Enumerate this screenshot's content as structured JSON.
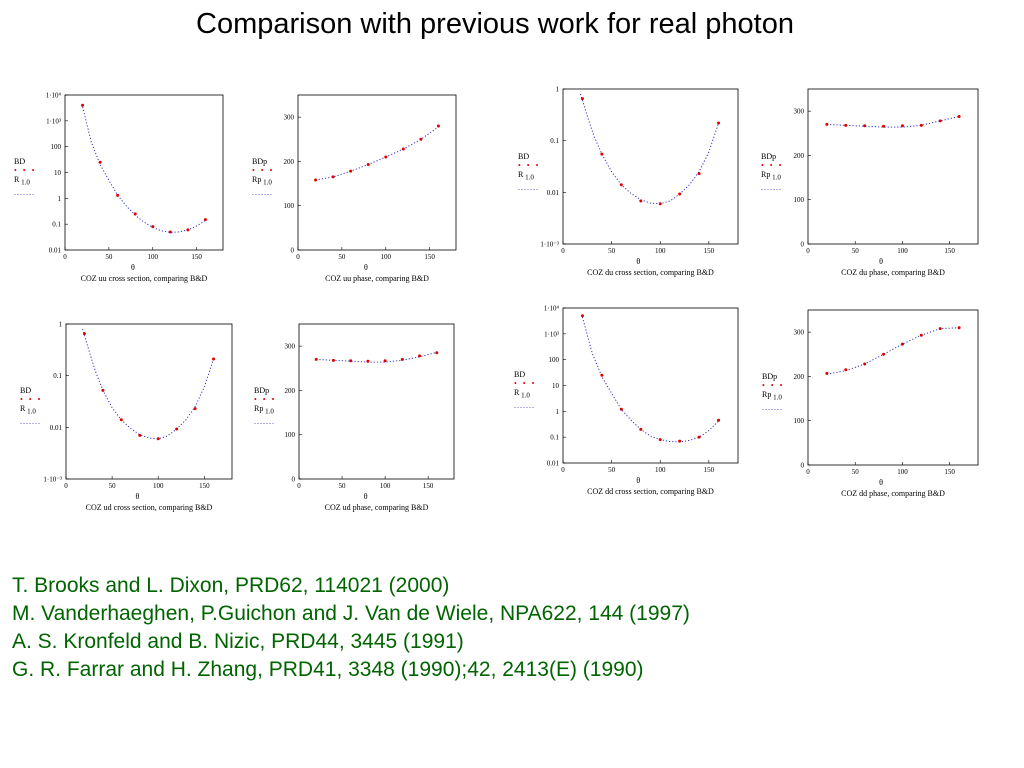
{
  "title": "Comparison with previous work for real photon",
  "references": [
    "T. Brooks and L. Dixon, PRD62, 114021 (2000)",
    "M. Vanderhaeghen, P.Guichon and J. Van de Wiele, NPA622, 144 (1997)",
    "A. S. Kronfeld and B. Nizic, PRD44, 3445 (1991)",
    "G. R. Farrar and H. Zhang, PRD41, 3348 (1990);42, 2413(E) (1990)"
  ],
  "colors": {
    "points": "#e00000",
    "curve": "#3333cc",
    "references": "#006400"
  },
  "chart_data": [
    {
      "type": "scatter",
      "yscale": "log",
      "xlabel": "θ",
      "caption": "COZ uu cross section, comparing B&D",
      "xlim": [
        0,
        180
      ],
      "xticks": [
        "0",
        "50",
        "100",
        "150"
      ],
      "ylim": [
        0.01,
        10000
      ],
      "yticks": [
        "0.01",
        "0.1",
        "1",
        "10",
        "100",
        "1·10³",
        "1·10⁴"
      ],
      "legend": {
        "points_label": "BD",
        "curve_label": "R",
        "curve_sub": "1.0"
      },
      "series": [
        {
          "name": "BD",
          "x": [
            20,
            40,
            60,
            80,
            100,
            120,
            140,
            160
          ],
          "y": [
            4000,
            25,
            1.3,
            0.25,
            0.08,
            0.05,
            0.06,
            0.15
          ]
        },
        {
          "name": "R",
          "style": "dotted",
          "x": [
            20,
            30,
            40,
            50,
            60,
            70,
            80,
            90,
            100,
            110,
            120,
            130,
            140,
            150,
            160
          ],
          "y": [
            3500,
            150,
            20,
            5,
            1.3,
            0.5,
            0.22,
            0.12,
            0.075,
            0.055,
            0.048,
            0.05,
            0.06,
            0.085,
            0.14
          ]
        }
      ]
    },
    {
      "type": "scatter",
      "yscale": "linear",
      "xlabel": "θ",
      "caption": "COZ uu phase, comparing B&D",
      "xlim": [
        0,
        180
      ],
      "xticks": [
        "0",
        "50",
        "100",
        "150"
      ],
      "ylim": [
        0,
        350
      ],
      "yticks": [
        "0",
        "100",
        "200",
        "300"
      ],
      "legend": {
        "points_label": "BDp",
        "curve_label": "Rp",
        "curve_sub": "1.0"
      },
      "series": [
        {
          "name": "BDp",
          "x": [
            20,
            40,
            60,
            80,
            100,
            120,
            140,
            160
          ],
          "y": [
            158,
            165,
            178,
            193,
            210,
            228,
            250,
            280
          ]
        },
        {
          "name": "Rp",
          "style": "dotted",
          "x": [
            20,
            40,
            60,
            80,
            100,
            120,
            140,
            160
          ],
          "y": [
            158,
            165,
            178,
            193,
            210,
            228,
            250,
            278
          ]
        }
      ]
    },
    {
      "type": "scatter",
      "yscale": "log",
      "xlabel": "θ",
      "caption": "COZ du cross section, comparing B&D",
      "xlim": [
        0,
        180
      ],
      "xticks": [
        "0",
        "50",
        "100",
        "150"
      ],
      "ylim": [
        0.001,
        1
      ],
      "yticks": [
        "1·10⁻³",
        "0.01",
        "0.1",
        "1"
      ],
      "legend": {
        "points_label": "BD",
        "curve_label": "R",
        "curve_sub": "1.0"
      },
      "series": [
        {
          "name": "BD",
          "x": [
            20,
            40,
            60,
            80,
            100,
            120,
            140,
            160
          ],
          "y": [
            0.65,
            0.055,
            0.014,
            0.0068,
            0.006,
            0.0093,
            0.023,
            0.22
          ]
        },
        {
          "name": "R",
          "style": "dotted",
          "x": [
            18,
            25,
            32,
            40,
            50,
            60,
            70,
            80,
            90,
            100,
            110,
            120,
            130,
            140,
            150,
            160
          ],
          "y": [
            0.8,
            0.3,
            0.12,
            0.055,
            0.025,
            0.014,
            0.0095,
            0.0072,
            0.0062,
            0.006,
            0.0068,
            0.0093,
            0.014,
            0.025,
            0.06,
            0.22
          ]
        }
      ]
    },
    {
      "type": "scatter",
      "yscale": "linear",
      "xlabel": "θ",
      "caption": "COZ du phase, comparing B&D",
      "xlim": [
        0,
        180
      ],
      "xticks": [
        "0",
        "50",
        "100",
        "150"
      ],
      "ylim": [
        0,
        350
      ],
      "yticks": [
        "0",
        "100",
        "200",
        "300"
      ],
      "legend": {
        "points_label": "BDp",
        "curve_label": "Rp",
        "curve_sub": "1.0"
      },
      "series": [
        {
          "name": "BDp",
          "x": [
            20,
            40,
            60,
            80,
            100,
            120,
            140,
            160
          ],
          "y": [
            270,
            268,
            267,
            266,
            267,
            268,
            278,
            288
          ]
        },
        {
          "name": "Rp",
          "style": "dotted",
          "x": [
            20,
            40,
            60,
            80,
            100,
            120,
            140,
            160
          ],
          "y": [
            270,
            268,
            266,
            264,
            264,
            268,
            278,
            288
          ]
        }
      ]
    },
    {
      "type": "scatter",
      "yscale": "log",
      "xlabel": "θ",
      "caption": "COZ ud cross section, comparing B&D",
      "xlim": [
        0,
        180
      ],
      "xticks": [
        "0",
        "50",
        "100",
        "150"
      ],
      "ylim": [
        0.001,
        1
      ],
      "yticks": [
        "1·10⁻³",
        "0.01",
        "0.1",
        "1"
      ],
      "legend": {
        "points_label": "BD",
        "curve_label": "R",
        "curve_sub": "1.0"
      },
      "series": [
        {
          "name": "BD",
          "x": [
            20,
            40,
            60,
            80,
            100,
            120,
            140,
            160
          ],
          "y": [
            0.65,
            0.052,
            0.014,
            0.007,
            0.006,
            0.0093,
            0.023,
            0.21
          ]
        },
        {
          "name": "R",
          "style": "dotted",
          "x": [
            18,
            25,
            32,
            40,
            50,
            60,
            70,
            80,
            90,
            100,
            110,
            120,
            130,
            140,
            150,
            160
          ],
          "y": [
            0.8,
            0.3,
            0.12,
            0.052,
            0.024,
            0.014,
            0.0095,
            0.0072,
            0.0062,
            0.006,
            0.0068,
            0.0093,
            0.014,
            0.025,
            0.06,
            0.21
          ]
        }
      ]
    },
    {
      "type": "scatter",
      "yscale": "linear",
      "xlabel": "θ",
      "caption": "COZ ud phase, comparing B&D",
      "xlim": [
        0,
        180
      ],
      "xticks": [
        "0",
        "50",
        "100",
        "150"
      ],
      "ylim": [
        0,
        350
      ],
      "yticks": [
        "0",
        "100",
        "200",
        "300"
      ],
      "legend": {
        "points_label": "BDp",
        "curve_label": "Rp",
        "curve_sub": "1.0"
      },
      "series": [
        {
          "name": "BDp",
          "x": [
            20,
            40,
            60,
            80,
            100,
            120,
            140,
            160
          ],
          "y": [
            270,
            268,
            267,
            266,
            267,
            270,
            278,
            285
          ]
        },
        {
          "name": "Rp",
          "style": "dotted",
          "x": [
            20,
            40,
            60,
            80,
            100,
            120,
            140,
            160
          ],
          "y": [
            270,
            268,
            266,
            264,
            264,
            268,
            276,
            286
          ]
        }
      ]
    },
    {
      "type": "scatter",
      "yscale": "log",
      "xlabel": "θ",
      "caption": "COZ dd cross section, comparing B&D",
      "xlim": [
        0,
        180
      ],
      "xticks": [
        "0",
        "50",
        "100",
        "150"
      ],
      "ylim": [
        0.01,
        10000
      ],
      "yticks": [
        "0.01",
        "0.1",
        "1",
        "10",
        "100",
        "1·10³",
        "1·10⁴"
      ],
      "legend": {
        "points_label": "BD",
        "curve_label": "R",
        "curve_sub": "1.0"
      },
      "series": [
        {
          "name": "BD",
          "x": [
            20,
            40,
            60,
            80,
            100,
            120,
            140,
            160
          ],
          "y": [
            5000,
            25,
            1.2,
            0.2,
            0.08,
            0.07,
            0.1,
            0.45
          ]
        },
        {
          "name": "R",
          "style": "dotted",
          "x": [
            20,
            30,
            40,
            50,
            60,
            70,
            80,
            90,
            100,
            110,
            120,
            130,
            140,
            150,
            160
          ],
          "y": [
            4500,
            180,
            22,
            5,
            1.2,
            0.45,
            0.2,
            0.11,
            0.08,
            0.068,
            0.065,
            0.075,
            0.1,
            0.18,
            0.42
          ]
        }
      ]
    },
    {
      "type": "scatter",
      "yscale": "linear",
      "xlabel": "θ",
      "caption": "COZ dd phase, comparing B&D",
      "xlim": [
        0,
        180
      ],
      "xticks": [
        "0",
        "50",
        "100",
        "150"
      ],
      "ylim": [
        0,
        350
      ],
      "yticks": [
        "0",
        "100",
        "200",
        "300"
      ],
      "legend": {
        "points_label": "BDp",
        "curve_label": "Rp",
        "curve_sub": "1.0"
      },
      "series": [
        {
          "name": "BDp",
          "x": [
            20,
            40,
            60,
            80,
            100,
            120,
            140,
            160
          ],
          "y": [
            207,
            215,
            228,
            250,
            273,
            293,
            308,
            310
          ]
        },
        {
          "name": "Rp",
          "style": "dotted",
          "x": [
            20,
            40,
            60,
            80,
            100,
            120,
            140,
            160
          ],
          "y": [
            205,
            213,
            228,
            250,
            273,
            293,
            308,
            310
          ]
        }
      ]
    }
  ]
}
